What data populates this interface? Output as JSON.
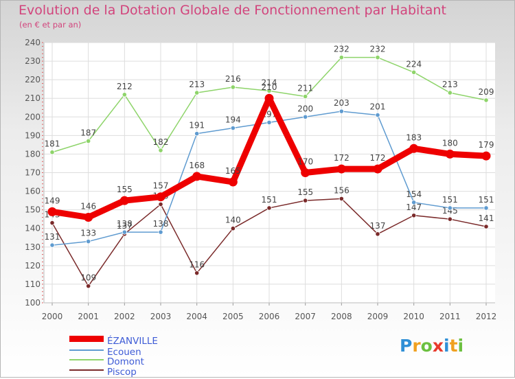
{
  "chart_data": {
    "type": "line",
    "title": "Evolution de la Dotation Globale de Fonctionnement par Habitant",
    "subtitle": "(en € et par an)",
    "xlabel": "",
    "ylabel": "",
    "x": [
      "2000",
      "2001",
      "2002",
      "2003",
      "2004",
      "2005",
      "2006",
      "2007",
      "2008",
      "2009",
      "2010",
      "2011",
      "2012"
    ],
    "ylim": [
      100,
      240
    ],
    "yticks": [
      "100",
      "110",
      "120",
      "130",
      "140",
      "150",
      "160",
      "170",
      "180",
      "190",
      "200",
      "210",
      "220",
      "230",
      "240"
    ],
    "grid": true,
    "legend_position": "bottom-left",
    "series": [
      {
        "name": "Piscop",
        "color": "#7a2a2a",
        "values": [
          143,
          109,
          137,
          153,
          116,
          140,
          151,
          155,
          156,
          137,
          147,
          145,
          141
        ]
      },
      {
        "name": "Domont",
        "color": "#8ed46a",
        "values": [
          181,
          187,
          212,
          182,
          213,
          216,
          214,
          211,
          232,
          232,
          224,
          213,
          209
        ]
      },
      {
        "name": "Ecouen",
        "color": "#5f9bd0",
        "values": [
          131,
          133,
          138,
          138,
          191,
          194,
          197,
          200,
          203,
          201,
          154,
          151,
          151
        ]
      },
      {
        "name": "ÉZANVILLE",
        "color": "#ee0000",
        "values": [
          149,
          146,
          155,
          157,
          168,
          165,
          210,
          170,
          172,
          172,
          183,
          180,
          179
        ]
      }
    ],
    "legend_order": [
      "ÉZANVILLE",
      "Ecouen",
      "Domont",
      "Piscop"
    ]
  },
  "legend": [
    {
      "label": "ÉZANVILLE",
      "color": "#ee0000"
    },
    {
      "label": "Ecouen",
      "color": "#5f9bd0"
    },
    {
      "label": "Domont",
      "color": "#8ed46a"
    },
    {
      "label": "Piscop",
      "color": "#7a2a2a"
    }
  ],
  "logo": {
    "text": "Proxiti",
    "letters": [
      {
        "ch": "P",
        "color": "#2f8fd6"
      },
      {
        "ch": "r",
        "color": "#f0a020"
      },
      {
        "ch": "o",
        "color": "#6cc040"
      },
      {
        "ch": "x",
        "color": "#e83a2c"
      },
      {
        "ch": "i",
        "color": "#2f8fd6"
      },
      {
        "ch": "t",
        "color": "#f0a020"
      },
      {
        "ch": "i",
        "color": "#6cc040"
      }
    ]
  }
}
